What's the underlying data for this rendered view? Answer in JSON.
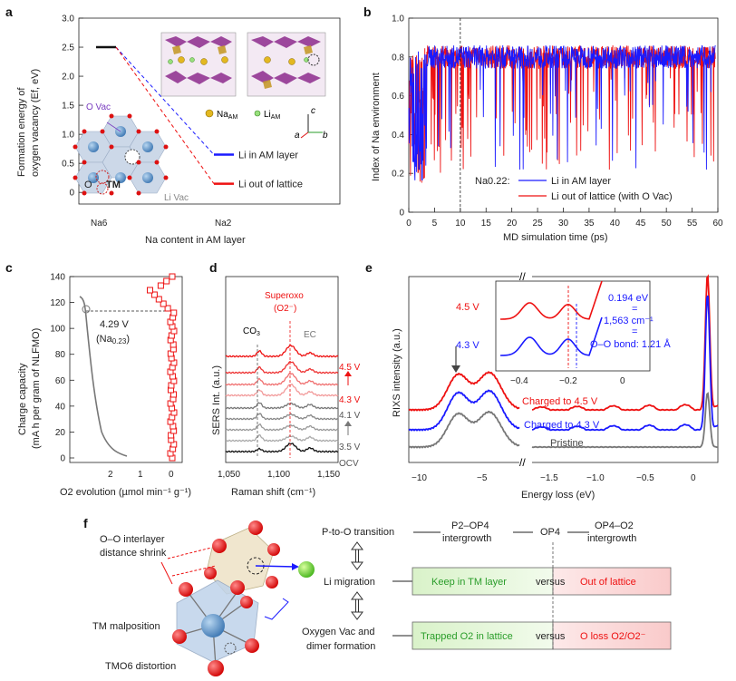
{
  "panel_labels": {
    "a": "a",
    "b": "b",
    "c": "c",
    "d": "d",
    "e": "e",
    "f": "f"
  },
  "chart_data": [
    {
      "panel": "a",
      "type": "line",
      "title": "",
      "ylabel_line1": "Formation energy of",
      "ylabel_line2": "oxygen vacancy (Ef, eV)",
      "xlabel": "Na content in AM layer",
      "x_ticks": [
        "Na6",
        "Na2"
      ],
      "ylim": [
        -0.2,
        3.0
      ],
      "y_ticks": [
        "0",
        "0.5",
        "1.0",
        "1.5",
        "2.0",
        "2.5",
        "3.0"
      ],
      "series": [
        {
          "name": "Na6 level",
          "values": [
            2.5
          ],
          "color": "#111111"
        },
        {
          "name": "Li in AM layer",
          "values": [
            0.65
          ],
          "color": "#1a1aff"
        },
        {
          "name": "Li out of lattice",
          "values": [
            0.15
          ],
          "color": "#ee1111"
        }
      ],
      "legend": [
        "Li in AM layer",
        "Li out of lattice"
      ],
      "annotations": {
        "ovac": "O Vac",
        "o": "O",
        "tm": "TM",
        "livac": "Li Vac",
        "na_am": "Na",
        "na_am_sub": "AM",
        "li_am": "Li",
        "li_am_sub": "AM",
        "axis_c": "c",
        "axis_b": "b",
        "axis_a": "a"
      }
    },
    {
      "panel": "b",
      "type": "line",
      "ylabel": "Index of Na environment",
      "xlabel": "MD simulation time (ps)",
      "xlim": [
        0,
        60
      ],
      "ylim": [
        0,
        1.0
      ],
      "x_ticks": [
        "0",
        "5",
        "10",
        "15",
        "20",
        "25",
        "30",
        "35",
        "40",
        "45",
        "50",
        "55",
        "60"
      ],
      "y_ticks": [
        "0",
        "0.2",
        "0.4",
        "0.6",
        "0.8",
        "1.0"
      ],
      "legend_title": "Na0.22:",
      "series": [
        {
          "name": "Li in AM layer",
          "color": "#1a1aff"
        },
        {
          "name": "Li out of lattice (with O Vac)",
          "color": "#ee1111"
        }
      ],
      "annotation_line_x": 10
    },
    {
      "panel": "c",
      "type": "scatter",
      "ylabel_line1": "Charge capacity",
      "ylabel_line2": "(mA h per gram of NLFMO)",
      "xlabel": "O2 evolution (µmol min⁻¹ g⁻¹)",
      "x_ticks": [
        "2",
        "1",
        "0"
      ],
      "y_ticks": [
        "0",
        "20",
        "40",
        "60",
        "80",
        "100",
        "120",
        "140"
      ],
      "ylim": [
        0,
        140
      ],
      "annotation": "4.29 V",
      "annotation2": "(Na",
      "annotation2_sub": "0.23",
      "annotation2_end": ")"
    },
    {
      "panel": "d",
      "type": "line",
      "ylabel": "SERS Int. (a.u.)",
      "xlabel": "Raman shift (cm⁻¹)",
      "x_ticks": [
        "1,050",
        "1,100",
        "1,150"
      ],
      "xlim": [
        1050,
        1150
      ],
      "peak_labels": {
        "co3": "CO",
        "co3_sub": "3",
        "ec": "EC",
        "superoxo": "Superoxo",
        "superoxo2": "(O2⁻)"
      },
      "voltage_labels": [
        "4.5 V",
        "4.3 V",
        "4.1 V",
        "3.5 V",
        "OCV"
      ]
    },
    {
      "panel": "e",
      "type": "line",
      "ylabel": "RIXS intensity (a.u.)",
      "xlabel": "Energy loss (eV)",
      "x_ticks": [
        "−10",
        "−5",
        "−1.5",
        "−1.0",
        "−0.5",
        "0"
      ],
      "series": [
        {
          "name": "Charged to 4.5 V",
          "color": "#ee1111"
        },
        {
          "name": "Charged to 4.3 V",
          "color": "#1a1aff"
        },
        {
          "name": "Pristine",
          "color": "#777777"
        }
      ],
      "inset": {
        "x_ticks": [
          "−0.4",
          "−0.2",
          "0"
        ],
        "label_45": "4.5 V",
        "label_43": "4.3 V",
        "ev": "0.194 eV",
        "wn": "1,563 cm⁻¹",
        "eq": "=",
        "bond": "O–O bond: 1.21 Å"
      }
    }
  ],
  "panel_f": {
    "left_labels": [
      "O–O interlayer",
      "distance shrink",
      "TM malposition",
      "TMO6 distortion"
    ],
    "rows": [
      {
        "label": "P-to-O transition",
        "stages": [
          "P2–OP4",
          "intergrowth",
          "OP4",
          "OP4–O2",
          "intergrowth"
        ]
      },
      {
        "label": "Li migration",
        "left": "Keep in TM layer",
        "mid": "versus",
        "right": "Out of lattice"
      },
      {
        "label": "Oxygen Vac and",
        "label2": "dimer formation",
        "left": "Trapped O2 in lattice",
        "mid": "versus",
        "right": "O loss O2/O2⁻"
      }
    ]
  }
}
